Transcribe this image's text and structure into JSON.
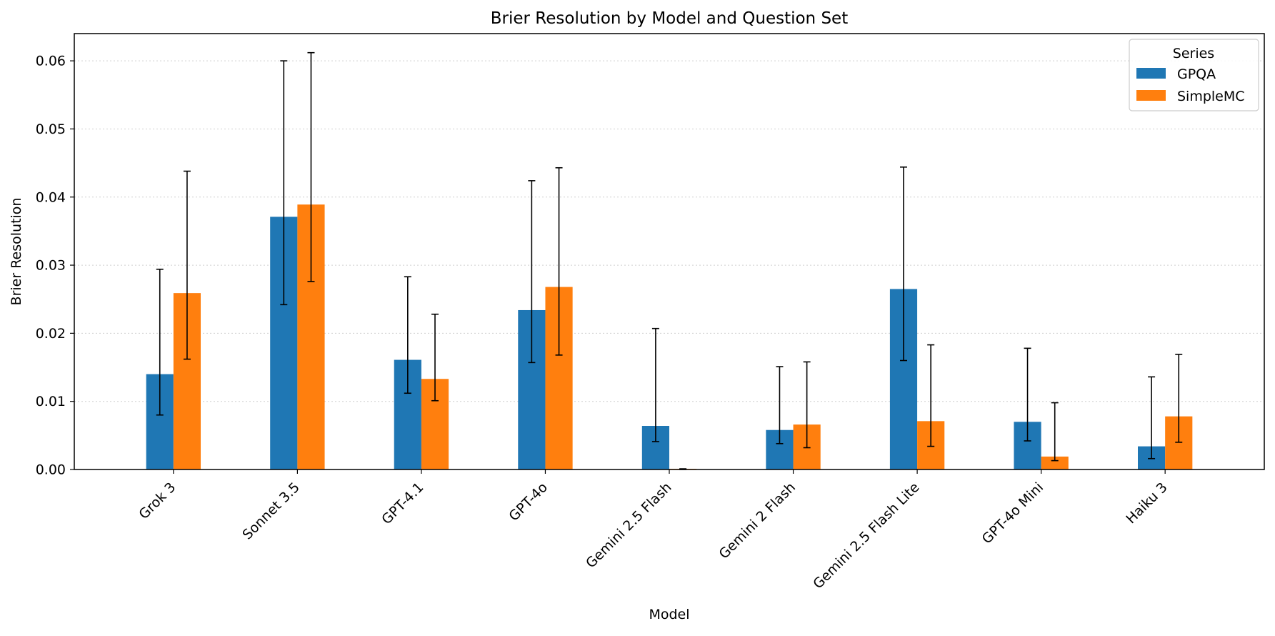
{
  "chart_data": {
    "type": "bar",
    "title": "Brier Resolution by Model and Question Set",
    "xlabel": "Model",
    "ylabel": "Brier Resolution",
    "ylim": [
      0,
      0.064
    ],
    "yticks": [
      "0.00",
      "0.01",
      "0.02",
      "0.03",
      "0.04",
      "0.05",
      "0.06"
    ],
    "grid": "y-dotted",
    "legend": {
      "title": "Series",
      "placement": "top-right"
    },
    "categories": [
      "Grok 3",
      "Sonnet 3.5",
      "GPT-4.1",
      "GPT-4o",
      "Gemini 2.5 Flash",
      "Gemini 2 Flash",
      "Gemini 2.5 Flash Lite",
      "GPT-4o Mini",
      "Haiku 3"
    ],
    "series": [
      {
        "name": "GPQA",
        "color": "#1f77b4",
        "values": [
          0.014,
          0.0371,
          0.0161,
          0.0234,
          0.0064,
          0.0058,
          0.0265,
          0.007,
          0.0034
        ],
        "err_low": [
          0.008,
          0.0242,
          0.0112,
          0.0157,
          0.0041,
          0.0038,
          0.016,
          0.0042,
          0.0016
        ],
        "err_high": [
          0.0294,
          0.06,
          0.0283,
          0.0424,
          0.0207,
          0.0151,
          0.0444,
          0.0178,
          0.0136
        ]
      },
      {
        "name": "SimpleMC",
        "color": "#ff7f0e",
        "values": [
          0.0259,
          0.0389,
          0.0133,
          0.0268,
          0.0001,
          0.0066,
          0.0071,
          0.0019,
          0.0078
        ],
        "err_low": [
          0.0162,
          0.0276,
          0.0101,
          0.0168,
          0.0,
          0.0032,
          0.0034,
          0.0013,
          0.004
        ],
        "err_high": [
          0.0438,
          0.0612,
          0.0228,
          0.0443,
          0.0001,
          0.0158,
          0.0183,
          0.0098,
          0.0169
        ]
      }
    ]
  }
}
